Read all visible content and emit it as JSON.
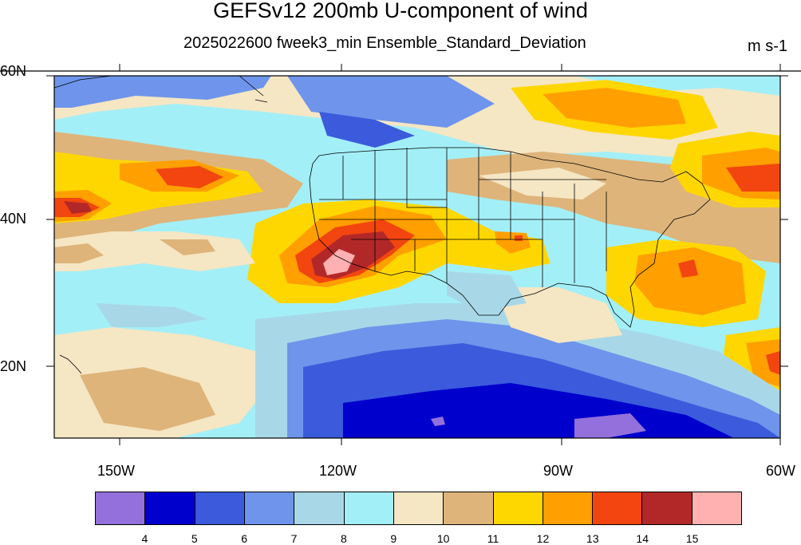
{
  "title": "GEFSv12 200mb U-component of wind",
  "subtitle": "2025022600 fweek3_min Ensemble_Standard_Deviation",
  "units": "m s-1",
  "lat_labels": [
    "60N",
    "40N",
    "20N"
  ],
  "lon_labels": [
    "150W",
    "120W",
    "90W",
    "60W"
  ],
  "colorbar": {
    "colors": [
      "#9370DB",
      "#0000CD",
      "#3B5BDC",
      "#6E95EB",
      "#A8D8E8",
      "#A3EFF7",
      "#F5E6C4",
      "#DEB47A",
      "#FFD700",
      "#FF9F00",
      "#F2450F",
      "#B22828",
      "#FFB0B0"
    ],
    "labels": [
      "4",
      "5",
      "6",
      "7",
      "8",
      "9",
      "10",
      "11",
      "12",
      "13",
      "14",
      "15"
    ]
  }
}
